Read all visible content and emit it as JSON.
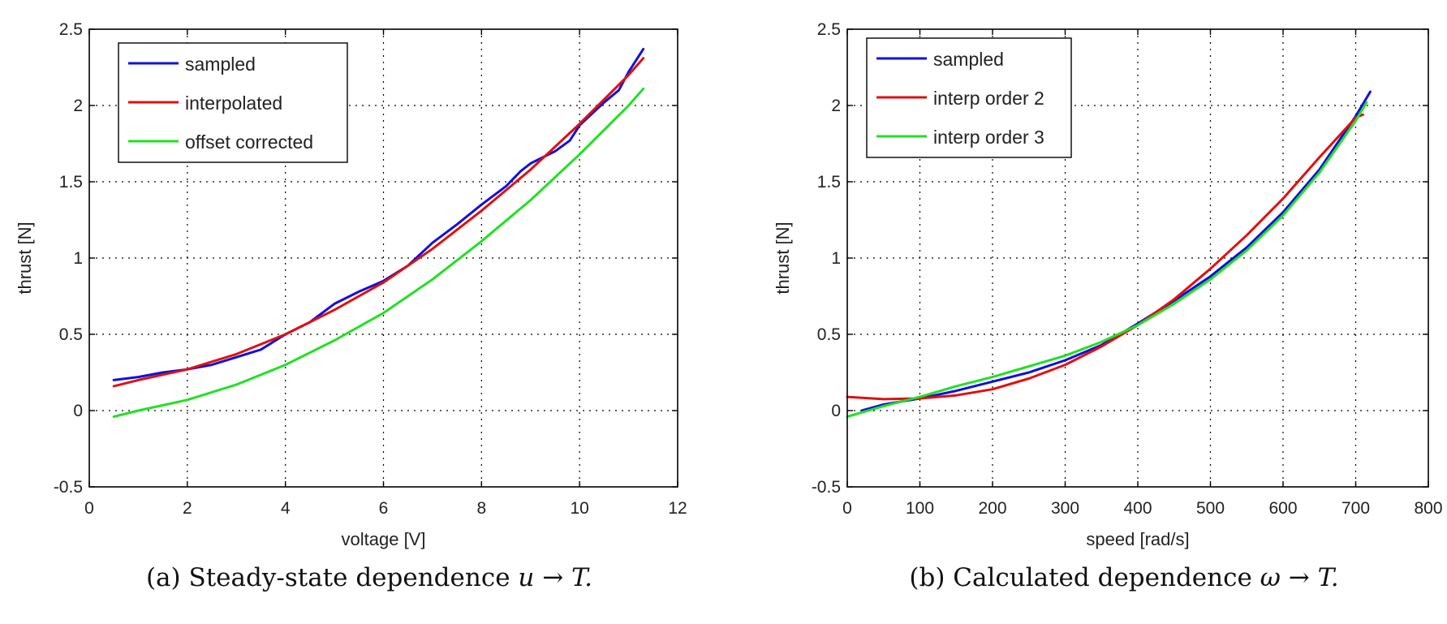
{
  "chart_data": [
    {
      "type": "line",
      "xlabel": "voltage [V]",
      "ylabel": "thrust [N]",
      "xlim": [
        0,
        12
      ],
      "ylim": [
        -0.5,
        2.5
      ],
      "xticks": [
        "0",
        "2",
        "4",
        "6",
        "8",
        "10",
        "12"
      ],
      "yticks": [
        "-0.5",
        "0",
        "0.5",
        "1",
        "1.5",
        "2",
        "2.5"
      ],
      "grid": true,
      "legend_location": "top-left",
      "caption_label": "(a) Steady-state dependence",
      "caption_math": "u → T.",
      "series": [
        {
          "name": "sampled",
          "color": "#1010e0",
          "x": [
            0.5,
            1.0,
            1.5,
            2.0,
            2.5,
            3.0,
            3.5,
            4.0,
            4.5,
            5.0,
            5.5,
            6.0,
            6.5,
            7.0,
            7.5,
            8.0,
            8.5,
            8.8,
            9.0,
            9.5,
            9.8,
            10.0,
            10.5,
            10.8,
            11.0,
            11.3
          ],
          "y": [
            0.2,
            0.22,
            0.25,
            0.27,
            0.3,
            0.35,
            0.4,
            0.5,
            0.58,
            0.7,
            0.78,
            0.85,
            0.95,
            1.1,
            1.22,
            1.35,
            1.47,
            1.57,
            1.62,
            1.7,
            1.77,
            1.87,
            2.02,
            2.1,
            2.22,
            2.37
          ]
        },
        {
          "name": "interpolated",
          "color": "#e01010",
          "x": [
            0.5,
            1.0,
            2.0,
            3.0,
            4.0,
            5.0,
            6.0,
            7.0,
            8.0,
            9.0,
            10.0,
            11.0,
            11.3
          ],
          "y": [
            0.16,
            0.2,
            0.27,
            0.37,
            0.5,
            0.66,
            0.84,
            1.06,
            1.31,
            1.58,
            1.88,
            2.2,
            2.31
          ]
        },
        {
          "name": "offset corrected",
          "color": "#22e022",
          "x": [
            0.5,
            1.0,
            2.0,
            3.0,
            4.0,
            5.0,
            6.0,
            7.0,
            8.0,
            9.0,
            10.0,
            11.0,
            11.3
          ],
          "y": [
            -0.04,
            0.0,
            0.07,
            0.17,
            0.3,
            0.46,
            0.64,
            0.86,
            1.11,
            1.38,
            1.68,
            2.0,
            2.11
          ]
        }
      ]
    },
    {
      "type": "line",
      "xlabel": "speed [rad/s]",
      "ylabel": "thrust [N]",
      "xlim": [
        0,
        800
      ],
      "ylim": [
        -0.5,
        2.5
      ],
      "xticks": [
        "0",
        "100",
        "200",
        "300",
        "400",
        "500",
        "600",
        "700",
        "800"
      ],
      "yticks": [
        "-0.5",
        "0",
        "0.5",
        "1",
        "1.5",
        "2",
        "2.5"
      ],
      "grid": true,
      "legend_location": "top-left",
      "caption_label": "(b) Calculated dependence",
      "caption_math": "ω → T.",
      "series": [
        {
          "name": "sampled",
          "color": "#1010e0",
          "x": [
            20,
            50,
            100,
            150,
            200,
            250,
            300,
            350,
            400,
            450,
            500,
            550,
            600,
            650,
            700,
            720
          ],
          "y": [
            0.0,
            0.04,
            0.08,
            0.13,
            0.19,
            0.25,
            0.33,
            0.43,
            0.57,
            0.72,
            0.88,
            1.07,
            1.3,
            1.58,
            1.93,
            2.09
          ]
        },
        {
          "name": "interp order 2",
          "color": "#e01010",
          "x": [
            0,
            50,
            100,
            150,
            200,
            250,
            300,
            350,
            400,
            450,
            500,
            550,
            600,
            650,
            700,
            710
          ],
          "y": [
            0.09,
            0.075,
            0.08,
            0.1,
            0.14,
            0.21,
            0.3,
            0.42,
            0.56,
            0.73,
            0.93,
            1.15,
            1.39,
            1.66,
            1.92,
            1.94
          ]
        },
        {
          "name": "interp order 3",
          "color": "#22e022",
          "x": [
            0,
            50,
            100,
            150,
            200,
            250,
            300,
            350,
            400,
            450,
            500,
            550,
            600,
            650,
            700,
            715
          ],
          "y": [
            -0.04,
            0.03,
            0.09,
            0.16,
            0.22,
            0.29,
            0.36,
            0.45,
            0.56,
            0.7,
            0.86,
            1.05,
            1.28,
            1.56,
            1.9,
            2.02
          ]
        }
      ]
    }
  ]
}
